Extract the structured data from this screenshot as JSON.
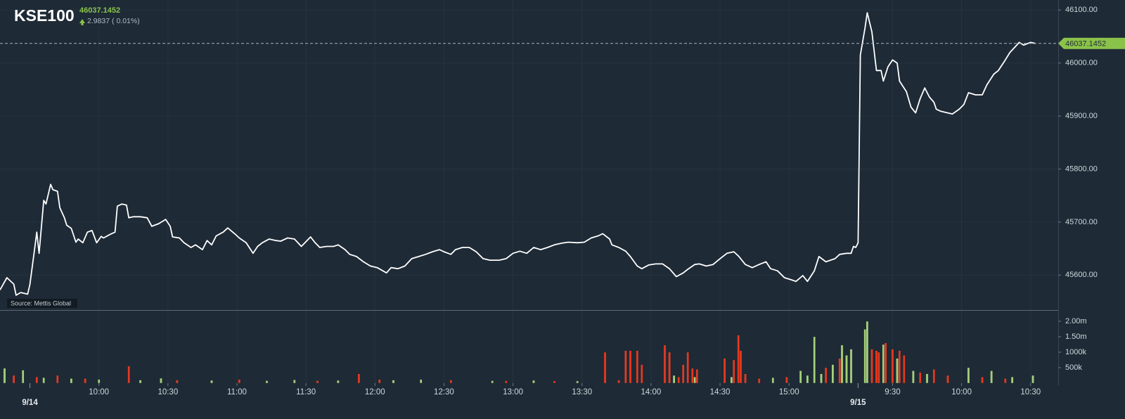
{
  "header": {
    "symbol": "KSE100",
    "last_price": 46037.1452,
    "change": "2.9837 ( 0.01%)",
    "source": "Source: Mettis Global"
  },
  "chart_data": [
    {
      "type": "line",
      "color": "#ffffff",
      "xlim": [
        2,
        462
      ],
      "ylim": [
        45534,
        46119
      ],
      "grid": true,
      "xticks": [
        {
          "value": 45,
          "label": "10:00"
        },
        {
          "value": 75,
          "label": "10:30"
        },
        {
          "value": 105,
          "label": "11:00"
        },
        {
          "value": 135,
          "label": "11:30"
        },
        {
          "value": 165,
          "label": "12:00"
        },
        {
          "value": 195,
          "label": "12:30"
        },
        {
          "value": 225,
          "label": "13:00"
        },
        {
          "value": 255,
          "label": "13:30"
        },
        {
          "value": 285,
          "label": "14:00"
        },
        {
          "value": 315,
          "label": "14:30"
        },
        {
          "value": 345,
          "label": "15:00"
        },
        {
          "value": 390,
          "label": "9:30"
        },
        {
          "value": 420,
          "label": "10:00"
        },
        {
          "value": 450,
          "label": "10:30"
        }
      ],
      "date_ticks": [
        {
          "value": 15,
          "label": "9/14"
        },
        {
          "value": 375,
          "label": "9/15"
        }
      ],
      "yticks": [
        {
          "value": 45600,
          "label": "45600.00"
        },
        {
          "value": 45700,
          "label": "45700.00"
        },
        {
          "value": 45800,
          "label": "45800.00"
        },
        {
          "value": 45900,
          "label": "45900.00"
        },
        {
          "value": 46000,
          "label": "46000.00"
        },
        {
          "value": 46100,
          "label": "46100.00"
        }
      ],
      "x": [
        2,
        5,
        8,
        9,
        11,
        14,
        15,
        17,
        18,
        19,
        21,
        22,
        24,
        25,
        27,
        28,
        30,
        31,
        33,
        35,
        36,
        38,
        40,
        42,
        44,
        46,
        47,
        50,
        52,
        53,
        55,
        57,
        58,
        60,
        63,
        66,
        68,
        71,
        74,
        76,
        77,
        80,
        82,
        85,
        87,
        90,
        92,
        94,
        96,
        99,
        101,
        104,
        106,
        109,
        112,
        114,
        116,
        119,
        122,
        124,
        127,
        130,
        133,
        137,
        139,
        141,
        144,
        147,
        149,
        152,
        154,
        157,
        160,
        163,
        166,
        170,
        172,
        175,
        178,
        181,
        184,
        187,
        190,
        193,
        195,
        198,
        200,
        203,
        206,
        209,
        212,
        215,
        219,
        222,
        225,
        228,
        231,
        234,
        237,
        240,
        243,
        246,
        249,
        253,
        256,
        259,
        262,
        264,
        267,
        268,
        271,
        274,
        276,
        279,
        281,
        284,
        287,
        290,
        293,
        296,
        299,
        301,
        304,
        306,
        309,
        312,
        315,
        318,
        321,
        323,
        326,
        329,
        332,
        335,
        337,
        340,
        343,
        346,
        348,
        351,
        353,
        356,
        358,
        361,
        363,
        365,
        367,
        370,
        372,
        373,
        374,
        375,
        376,
        378,
        379,
        381,
        383,
        385,
        386,
        388,
        390,
        392,
        393,
        396,
        398,
        400,
        402,
        404,
        406,
        408,
        409,
        411,
        414,
        416,
        419,
        421,
        423,
        426,
        429,
        431,
        434,
        436,
        439,
        441,
        444,
        445,
        447,
        450,
        452
      ],
      "values": [
        45572,
        45595,
        45583,
        45562,
        45567,
        45564,
        45582,
        45648,
        45681,
        45641,
        45741,
        45734,
        45771,
        45761,
        45758,
        45727,
        45708,
        45694,
        45688,
        45662,
        45668,
        45661,
        45681,
        45684,
        45661,
        45673,
        45670,
        45677,
        45681,
        45730,
        45734,
        45732,
        45708,
        45710,
        45710,
        45708,
        45692,
        45697,
        45705,
        45692,
        45672,
        45670,
        45661,
        45652,
        45657,
        45648,
        45665,
        45657,
        45674,
        45681,
        45689,
        45678,
        45670,
        45661,
        45641,
        45654,
        45661,
        45668,
        45665,
        45664,
        45670,
        45668,
        45654,
        45672,
        45661,
        45652,
        45654,
        45654,
        45657,
        45648,
        45639,
        45635,
        45625,
        45617,
        45614,
        45604,
        45614,
        45612,
        45617,
        45631,
        45635,
        45639,
        45644,
        45648,
        45644,
        45639,
        45648,
        45652,
        45652,
        45644,
        45631,
        45628,
        45628,
        45631,
        45641,
        45645,
        45641,
        45652,
        45648,
        45652,
        45657,
        45660,
        45662,
        45661,
        45662,
        45670,
        45674,
        45678,
        45668,
        45657,
        45652,
        45645,
        45635,
        45617,
        45612,
        45619,
        45621,
        45621,
        45612,
        45597,
        45604,
        45611,
        45620,
        45621,
        45617,
        45620,
        45631,
        45641,
        45644,
        45636,
        45620,
        45614,
        45620,
        45625,
        45612,
        45608,
        45595,
        45591,
        45588,
        45599,
        45588,
        45608,
        45635,
        45625,
        45628,
        45631,
        45639,
        45641,
        45641,
        45654,
        45652,
        45661,
        46015,
        46066,
        46095,
        46059,
        45986,
        45986,
        45966,
        45993,
        46006,
        46000,
        45966,
        45946,
        45917,
        45906,
        45933,
        45953,
        45936,
        45926,
        45913,
        45909,
        45906,
        45904,
        45913,
        45922,
        45944,
        45940,
        45940,
        45959,
        45979,
        45986,
        46006,
        46020,
        46034,
        46039,
        46034,
        46039,
        46037
      ]
    },
    {
      "type": "bar",
      "xlim": [
        2,
        462
      ],
      "ylim": [
        0,
        2340000
      ],
      "yticks": [
        {
          "value": 500000,
          "label": "500k"
        },
        {
          "value": 1000000,
          "label": "1000k"
        },
        {
          "value": 1500000,
          "label": "1.50m"
        },
        {
          "value": 2000000,
          "label": "2.00m"
        }
      ],
      "series": [
        {
          "color": "#a5d07a",
          "x": [
            4,
            12,
            21,
            33,
            45,
            63,
            72,
            94,
            118,
            130,
            149,
            173,
            185,
            216,
            234,
            253,
            295,
            304,
            320,
            338,
            350,
            353,
            356,
            359,
            364,
            368,
            370,
            372,
            378,
            379,
            386,
            392,
            399,
            405,
            423,
            433,
            442,
            451
          ],
          "values": [
            480000,
            420000,
            180000,
            150000,
            120000,
            100000,
            160000,
            90000,
            80000,
            110000,
            90000,
            100000,
            120000,
            80000,
            90000,
            70000,
            250000,
            200000,
            200000,
            180000,
            400000,
            250000,
            1500000,
            300000,
            600000,
            1230000,
            900000,
            1100000,
            1740000,
            2000000,
            1250000,
            800000,
            400000,
            300000,
            500000,
            400000,
            200000,
            250000
          ]
        },
        {
          "color": "#e5391f",
          "x": [
            8,
            18,
            27,
            39,
            58,
            79,
            106,
            140,
            158,
            167,
            198,
            222,
            243,
            265,
            271,
            274,
            276,
            279,
            281,
            291,
            293,
            297,
            299,
            301,
            303,
            305,
            317,
            321,
            323,
            324,
            326,
            332,
            344,
            361,
            367,
            381,
            383,
            384,
            387,
            390,
            393,
            395,
            402,
            408,
            414,
            429,
            439
          ],
          "values": [
            250000,
            200000,
            250000,
            150000,
            550000,
            100000,
            120000,
            80000,
            300000,
            120000,
            100000,
            80000,
            70000,
            1000000,
            100000,
            1050000,
            1050000,
            1050000,
            600000,
            1230000,
            1000000,
            200000,
            600000,
            1000000,
            480000,
            450000,
            800000,
            750000,
            1550000,
            1050000,
            300000,
            150000,
            200000,
            500000,
            800000,
            1100000,
            1050000,
            1000000,
            1300000,
            1100000,
            1050000,
            900000,
            350000,
            450000,
            250000,
            200000,
            150000
          ]
        }
      ]
    }
  ]
}
